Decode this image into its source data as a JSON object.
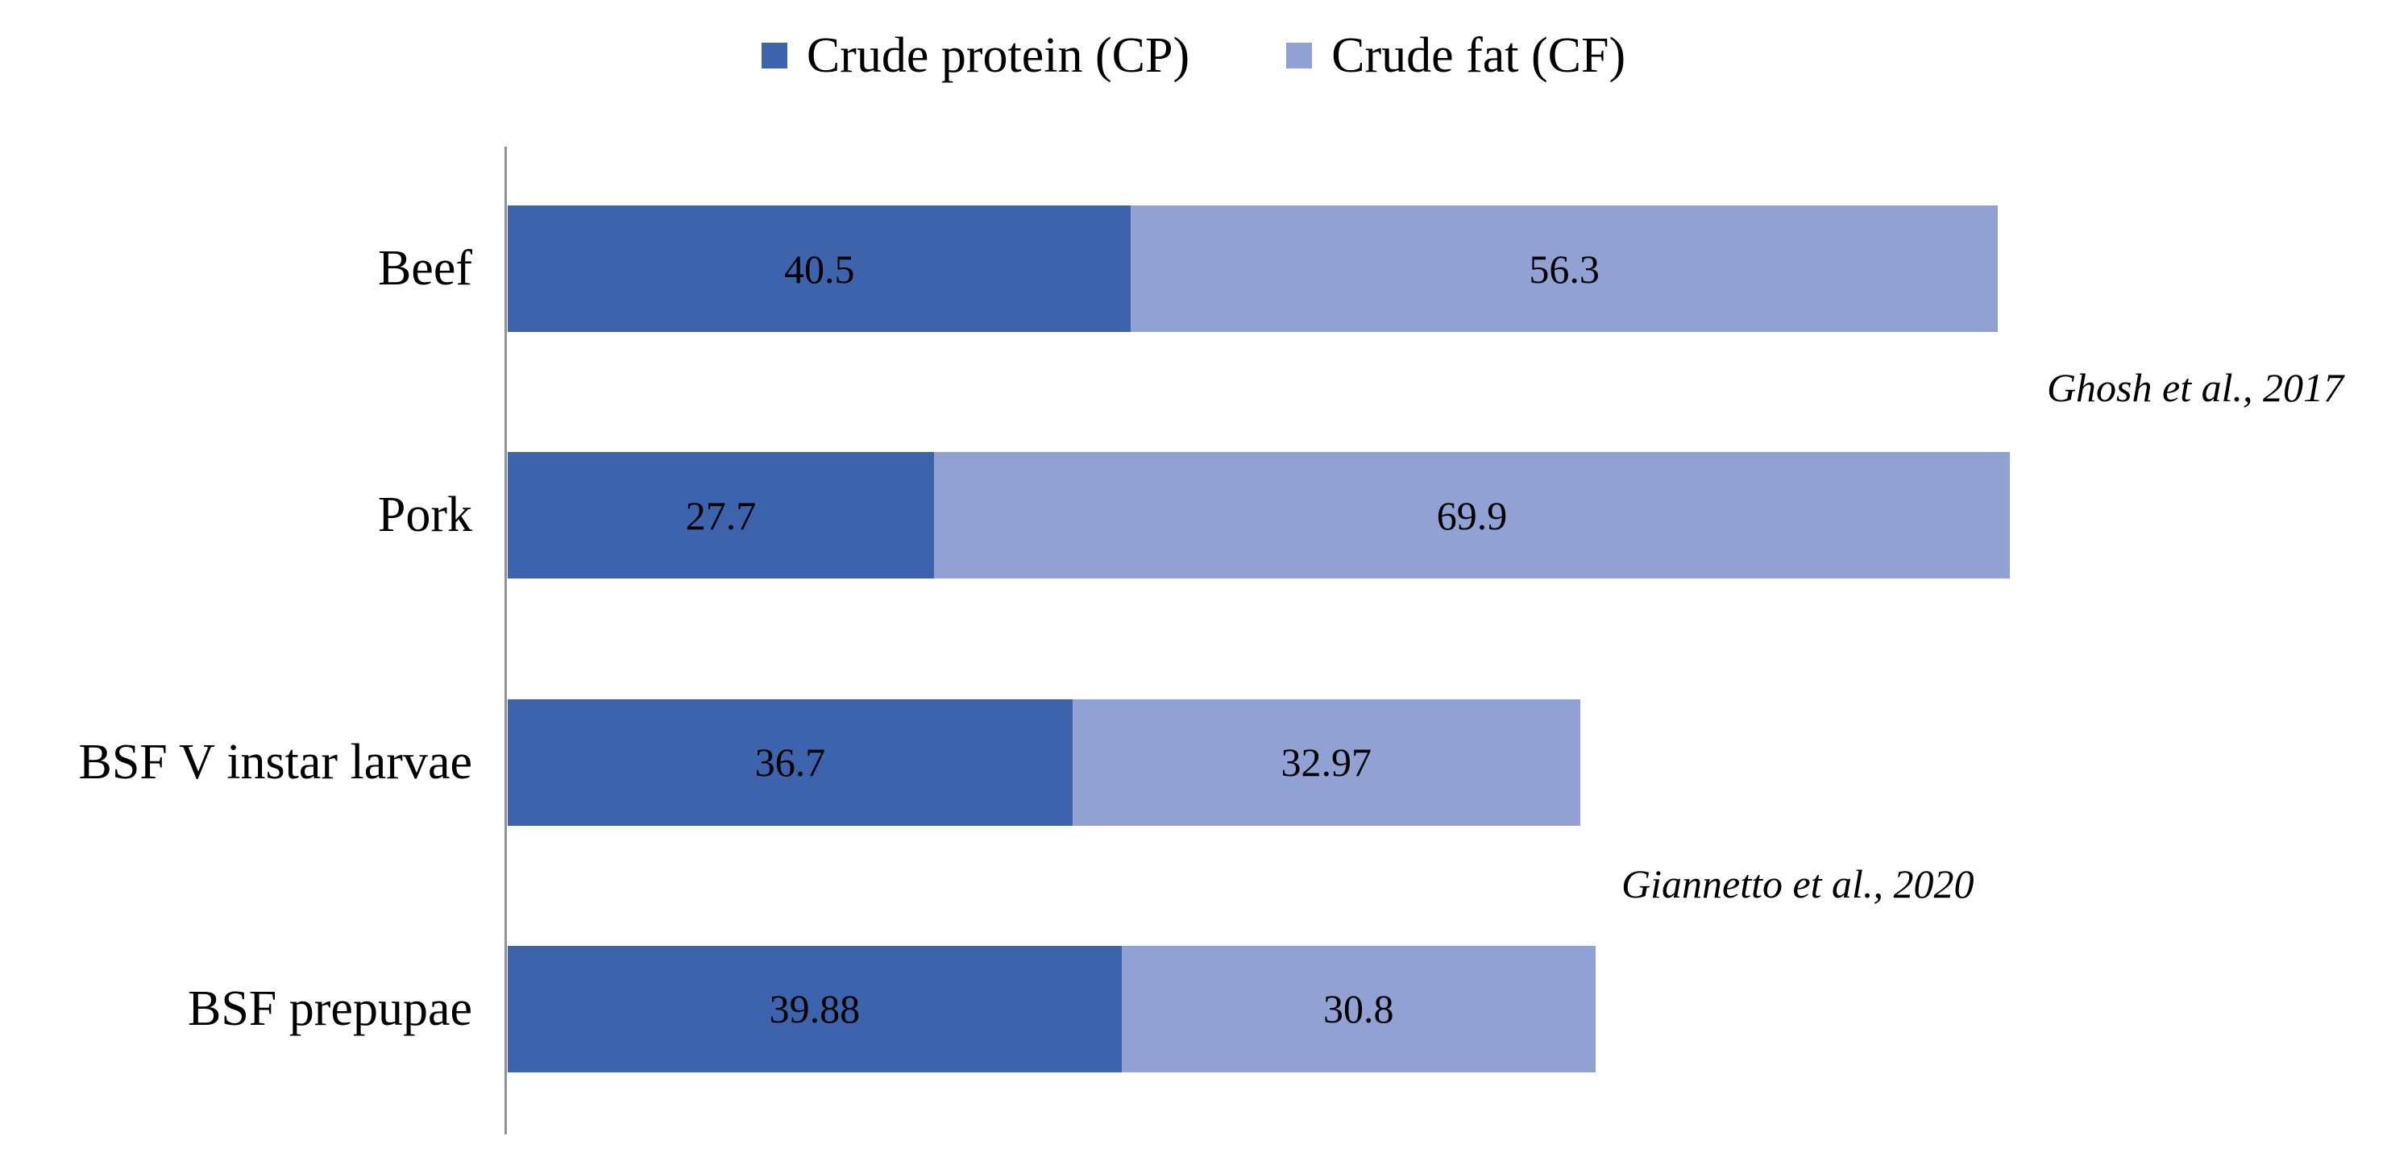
{
  "chart_data": {
    "type": "bar",
    "orientation": "horizontal",
    "stacked": true,
    "title": "",
    "xlabel": "",
    "ylabel": "",
    "legend_position": "top",
    "data_labels": "inside-center",
    "grid": false,
    "x_axis_visible": false,
    "y_axis_line": true,
    "categories": [
      "Beef",
      "Pork",
      "BSF V instar larvae",
      "BSF prepupae"
    ],
    "series": [
      {
        "name": "Crude protein (CP)",
        "color": "#3d63ac",
        "values": [
          40.5,
          27.7,
          36.7,
          39.88
        ]
      },
      {
        "name": "Crude fat (CF)",
        "color": "#91a1d3",
        "values": [
          56.3,
          69.9,
          32.97,
          30.8
        ]
      }
    ],
    "annotations": [
      {
        "text": "Ghosh et al., 2017",
        "applies_to": [
          "Beef",
          "Pork"
        ]
      },
      {
        "text": "Giannetto et al., 2020",
        "applies_to": [
          "BSF V instar larvae",
          "BSF prepupae"
        ]
      }
    ],
    "colors": {
      "axis_line": "#8e9399",
      "label_text": "#000000"
    }
  }
}
